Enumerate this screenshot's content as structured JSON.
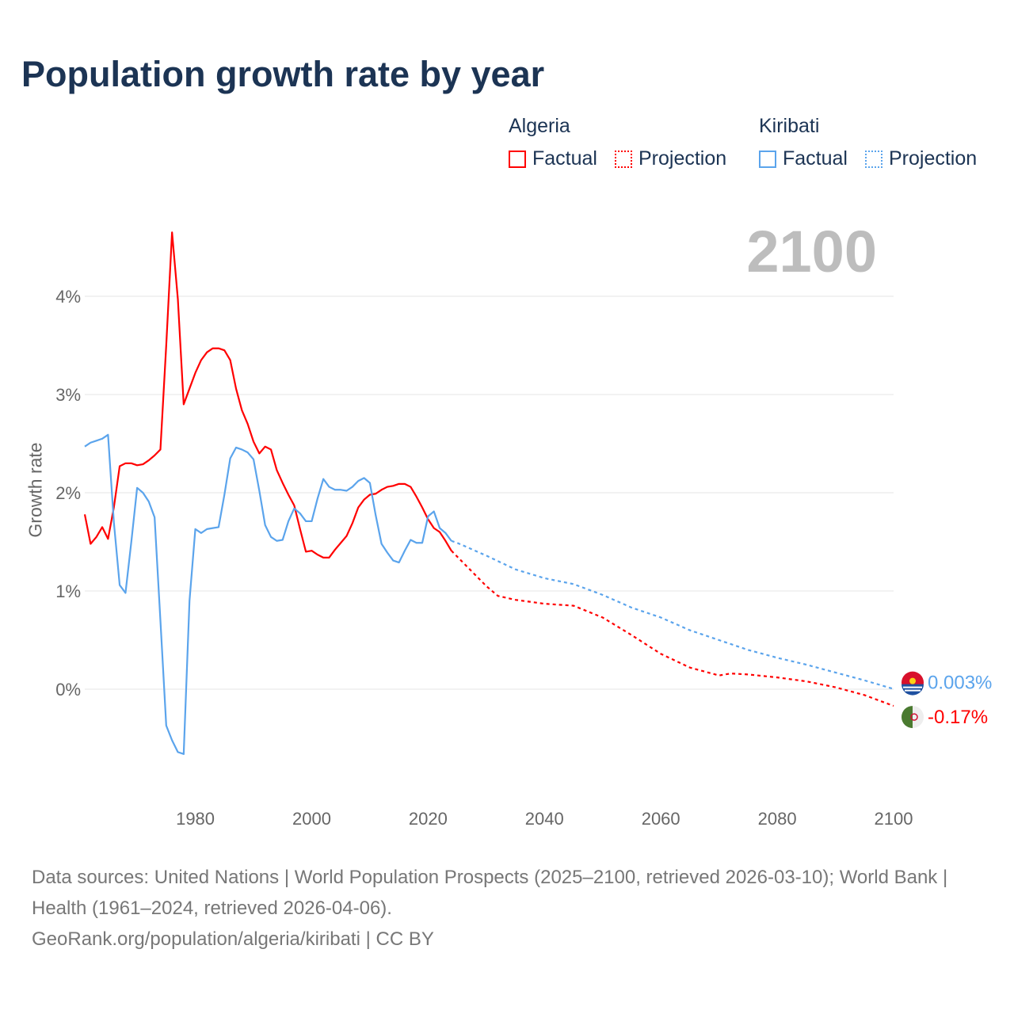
{
  "chart_data": {
    "type": "line",
    "title": "Population growth rate by year",
    "ylabel": "Growth rate",
    "xlabel": "",
    "current_year_label": "2100",
    "xlim": [
      1961,
      2100
    ],
    "ylim": [
      -1.1,
      4.9
    ],
    "x_ticks": [
      1980,
      2000,
      2020,
      2040,
      2060,
      2080,
      2100
    ],
    "x_tick_labels": [
      "1980",
      "2000",
      "2020",
      "2040",
      "2060",
      "2080",
      "2100"
    ],
    "y_ticks": [
      0,
      1,
      2,
      3,
      4
    ],
    "y_tick_labels": [
      "0%",
      "1%",
      "2%",
      "3%",
      "4%"
    ],
    "grid": true,
    "legend": {
      "placement": "top-right",
      "factual_label": "Factual",
      "projection_label": "Projection"
    },
    "series": [
      {
        "name": "Algeria",
        "color": "#ff0000",
        "end_label": "-0.17%",
        "flag": "algeria-flag",
        "factual": {
          "x_start": 1961,
          "values": [
            1.78,
            1.48,
            1.55,
            1.65,
            1.53,
            1.85,
            2.27,
            2.3,
            2.3,
            2.28,
            2.29,
            2.33,
            2.38,
            2.44,
            3.5,
            4.65,
            3.97,
            2.9,
            3.06,
            3.22,
            3.35,
            3.43,
            3.47,
            3.47,
            3.45,
            3.35,
            3.06,
            2.84,
            2.7,
            2.52,
            2.4,
            2.47,
            2.44,
            2.23,
            2.1,
            1.98,
            1.87,
            1.63,
            1.4,
            1.41,
            1.37,
            1.34,
            1.34,
            1.42,
            1.49,
            1.56,
            1.69,
            1.85,
            1.93,
            1.98,
            1.99,
            2.03,
            2.06,
            2.07,
            2.09,
            2.09,
            2.06,
            1.96,
            1.85,
            1.73,
            1.64,
            1.6,
            1.51,
            1.41
          ]
        },
        "projection": {
          "x": [
            2024,
            2025,
            2028,
            2030,
            2032,
            2035,
            2040,
            2045,
            2050,
            2055,
            2060,
            2065,
            2070,
            2072,
            2075,
            2080,
            2085,
            2090,
            2095,
            2100
          ],
          "values": [
            1.41,
            1.35,
            1.17,
            1.05,
            0.95,
            0.91,
            0.87,
            0.85,
            0.73,
            0.55,
            0.36,
            0.22,
            0.14,
            0.16,
            0.15,
            0.12,
            0.08,
            0.02,
            -0.06,
            -0.17
          ]
        }
      },
      {
        "name": "Kiribati",
        "color": "#5ba4ec",
        "end_label": "0.003%",
        "flag": "kiribati-flag",
        "factual": {
          "x_start": 1961,
          "values": [
            2.47,
            2.51,
            2.53,
            2.55,
            2.59,
            1.7,
            1.06,
            0.98,
            1.5,
            2.05,
            2.0,
            1.91,
            1.75,
            0.7,
            -0.37,
            -0.52,
            -0.64,
            -0.66,
            0.9,
            1.63,
            1.59,
            1.63,
            1.64,
            1.65,
            1.98,
            2.35,
            2.46,
            2.44,
            2.41,
            2.34,
            2.02,
            1.67,
            1.55,
            1.51,
            1.52,
            1.71,
            1.84,
            1.79,
            1.71,
            1.71,
            1.94,
            2.14,
            2.06,
            2.03,
            2.03,
            2.02,
            2.06,
            2.12,
            2.15,
            2.1,
            1.77,
            1.48,
            1.39,
            1.31,
            1.29,
            1.41,
            1.52,
            1.49,
            1.49,
            1.76,
            1.81,
            1.64,
            1.59,
            1.51
          ]
        },
        "projection": {
          "x": [
            2024,
            2025,
            2030,
            2035,
            2040,
            2045,
            2050,
            2055,
            2060,
            2065,
            2070,
            2075,
            2080,
            2085,
            2090,
            2095,
            2100
          ],
          "values": [
            1.51,
            1.49,
            1.36,
            1.22,
            1.13,
            1.07,
            0.96,
            0.83,
            0.73,
            0.6,
            0.5,
            0.4,
            0.32,
            0.25,
            0.17,
            0.09,
            0.003
          ]
        }
      }
    ]
  },
  "footer": {
    "sources": "Data sources: United Nations | World Population Prospects (2025–2100, retrieved 2026-03-10); World Bank | Health (1961–2024, retrieved 2026-04-06).",
    "link": "GeoRank.org/population/algeria/kiribati | CC BY"
  }
}
